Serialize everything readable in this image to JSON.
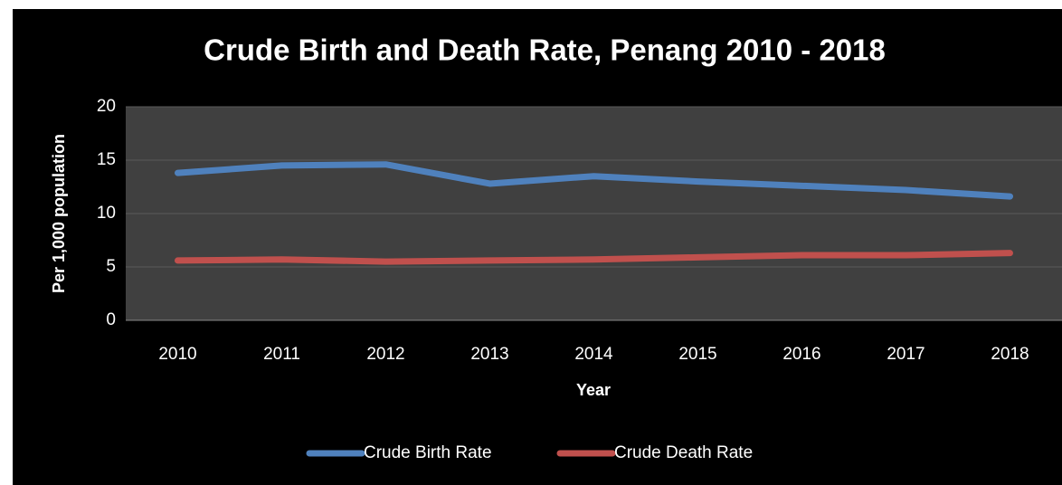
{
  "chart_data": {
    "type": "line",
    "title": "Crude Birth and Death Rate, Penang 2010 - 2018",
    "x_label": "Year",
    "y_label": "Per 1,000 population",
    "categories": [
      "2010",
      "2011",
      "2012",
      "2013",
      "2014",
      "2015",
      "2016",
      "2017",
      "2018"
    ],
    "series": [
      {
        "name": "Crude Birth Rate",
        "color": "#4f81bd",
        "values": [
          13.8,
          14.5,
          14.6,
          12.8,
          13.5,
          13.0,
          12.6,
          12.2,
          11.6
        ]
      },
      {
        "name": "Crude Death Rate",
        "color": "#c0504d",
        "values": [
          5.6,
          5.7,
          5.5,
          5.6,
          5.7,
          5.9,
          6.1,
          6.1,
          6.3
        ]
      }
    ],
    "ylim": [
      0,
      20
    ],
    "yticks": [
      0,
      5,
      10,
      15,
      20
    ],
    "grid": true,
    "legend": "bottom"
  }
}
